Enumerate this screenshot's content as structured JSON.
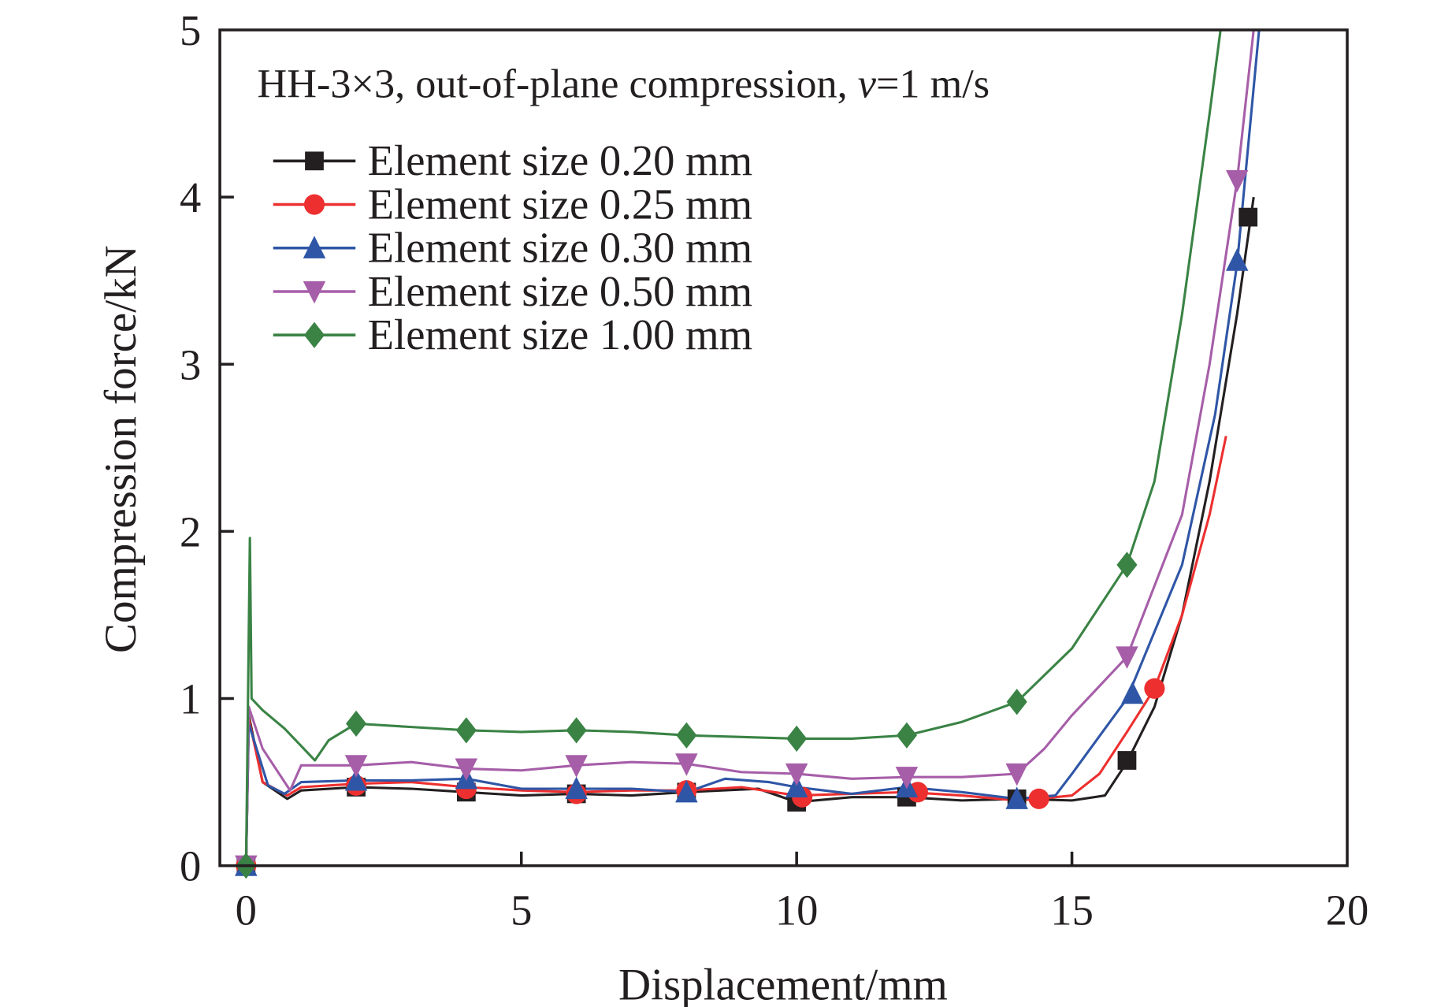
{
  "chart_data": {
    "type": "line",
    "title": "HH-3×3, out-of-plane compression, v=1 m/s",
    "title_parts": {
      "prefix": "HH-3×3, out-of-plane compression, ",
      "italic": "v",
      "suffix": "=1 m/s"
    },
    "xlabel": "Displacement/mm",
    "ylabel": "Compression force/kN",
    "xlim": [
      -0.5,
      20
    ],
    "ylim": [
      0,
      5
    ],
    "xticks": [
      0,
      5,
      10,
      15,
      20
    ],
    "yticks": [
      0,
      1,
      2,
      3,
      4,
      5
    ],
    "grid": false,
    "legend_position": "top-left",
    "series": [
      {
        "name": "Element size 0.20 mm",
        "color": "#231f20",
        "marker": "square",
        "x": [
          0,
          0.05,
          0.3,
          0.75,
          1,
          2,
          3,
          4,
          5,
          6,
          7,
          8,
          9.3,
          10,
          11,
          12,
          13,
          14,
          15,
          15.6,
          16,
          16.5,
          17,
          17.5,
          18,
          18.3
        ],
        "y": [
          0,
          0.9,
          0.5,
          0.4,
          0.45,
          0.47,
          0.46,
          0.44,
          0.42,
          0.43,
          0.42,
          0.44,
          0.46,
          0.38,
          0.41,
          0.41,
          0.39,
          0.4,
          0.39,
          0.42,
          0.62,
          0.95,
          1.5,
          2.3,
          3.3,
          4.0
        ],
        "markers_x": [
          0,
          2,
          4,
          6,
          8,
          10,
          12,
          14,
          16,
          18.2
        ],
        "markers_y": [
          0,
          0.47,
          0.44,
          0.43,
          0.44,
          0.38,
          0.41,
          0.4,
          0.63,
          3.88
        ]
      },
      {
        "name": "Element size 0.25 mm",
        "color": "#ed2f2f",
        "marker": "circle",
        "x": [
          0,
          0.05,
          0.3,
          0.75,
          1,
          2,
          3,
          4,
          5,
          6,
          7,
          8,
          9,
          10,
          11,
          12,
          13,
          14,
          14.4,
          15,
          15.5,
          16,
          16.5,
          17,
          17.5,
          17.8
        ],
        "y": [
          0,
          0.88,
          0.5,
          0.42,
          0.47,
          0.49,
          0.5,
          0.47,
          0.45,
          0.44,
          0.45,
          0.45,
          0.47,
          0.42,
          0.43,
          0.44,
          0.42,
          0.39,
          0.4,
          0.42,
          0.55,
          0.8,
          1.06,
          1.5,
          2.1,
          2.57
        ],
        "markers_x": [
          0,
          2,
          4,
          6,
          8,
          10.1,
          12.2,
          14.4,
          16.5
        ],
        "markers_y": [
          0,
          0.48,
          0.46,
          0.43,
          0.45,
          0.41,
          0.44,
          0.4,
          1.06
        ]
      },
      {
        "name": "Element size 0.30 mm",
        "color": "#2f56a6",
        "marker": "triangle-up",
        "x": [
          0,
          0.05,
          0.4,
          0.7,
          1,
          2,
          3,
          4,
          5,
          6,
          7,
          8,
          8.7,
          9.5,
          10,
          11,
          12,
          13,
          14,
          14.7,
          15,
          16,
          17,
          17.6,
          18,
          18.4
        ],
        "y": [
          0,
          0.85,
          0.48,
          0.43,
          0.5,
          0.51,
          0.51,
          0.52,
          0.46,
          0.46,
          0.46,
          0.44,
          0.52,
          0.5,
          0.47,
          0.43,
          0.47,
          0.44,
          0.4,
          0.42,
          0.55,
          1.0,
          1.8,
          2.7,
          3.6,
          5.0
        ],
        "markers_x": [
          0,
          2,
          4,
          6,
          8,
          10,
          12,
          14,
          16.1,
          18
        ],
        "markers_y": [
          0,
          0.51,
          0.52,
          0.46,
          0.44,
          0.47,
          0.47,
          0.4,
          1.03,
          3.62
        ]
      },
      {
        "name": "Element size 0.50 mm",
        "color": "#a65ea8",
        "marker": "triangle-down",
        "x": [
          0,
          0.05,
          0.3,
          0.8,
          1,
          2,
          3,
          4,
          5,
          6,
          7,
          8,
          9,
          10,
          11,
          12,
          13,
          14,
          14.5,
          15,
          16,
          17,
          17.5,
          18,
          18.3
        ],
        "y": [
          0,
          0.95,
          0.7,
          0.45,
          0.6,
          0.6,
          0.62,
          0.58,
          0.57,
          0.6,
          0.62,
          0.61,
          0.56,
          0.55,
          0.52,
          0.53,
          0.53,
          0.55,
          0.7,
          0.9,
          1.25,
          2.1,
          3.0,
          4.1,
          5.0
        ],
        "markers_x": [
          0,
          2,
          4,
          6,
          8,
          10,
          12,
          14,
          16,
          18
        ],
        "markers_y": [
          0,
          0.6,
          0.58,
          0.6,
          0.61,
          0.55,
          0.53,
          0.55,
          1.25,
          4.1
        ]
      },
      {
        "name": "Element size 1.00 mm",
        "color": "#3a8345",
        "marker": "diamond",
        "x": [
          0,
          0.07,
          0.1,
          0.3,
          0.7,
          1.25,
          1.5,
          2,
          3,
          4,
          5,
          6,
          7,
          8,
          9,
          10,
          11,
          12,
          13,
          14,
          15,
          16,
          16.5,
          17,
          17.5,
          17.7
        ],
        "y": [
          0,
          1.96,
          1.0,
          0.93,
          0.82,
          0.63,
          0.75,
          0.85,
          0.83,
          0.81,
          0.8,
          0.81,
          0.8,
          0.78,
          0.77,
          0.76,
          0.76,
          0.78,
          0.86,
          0.98,
          1.3,
          1.8,
          2.3,
          3.3,
          4.5,
          5.0
        ],
        "markers_x": [
          0,
          2,
          4,
          6,
          8,
          10,
          12,
          14,
          16
        ],
        "markers_y": [
          0,
          0.85,
          0.81,
          0.81,
          0.78,
          0.76,
          0.78,
          0.98,
          1.8
        ]
      }
    ]
  }
}
